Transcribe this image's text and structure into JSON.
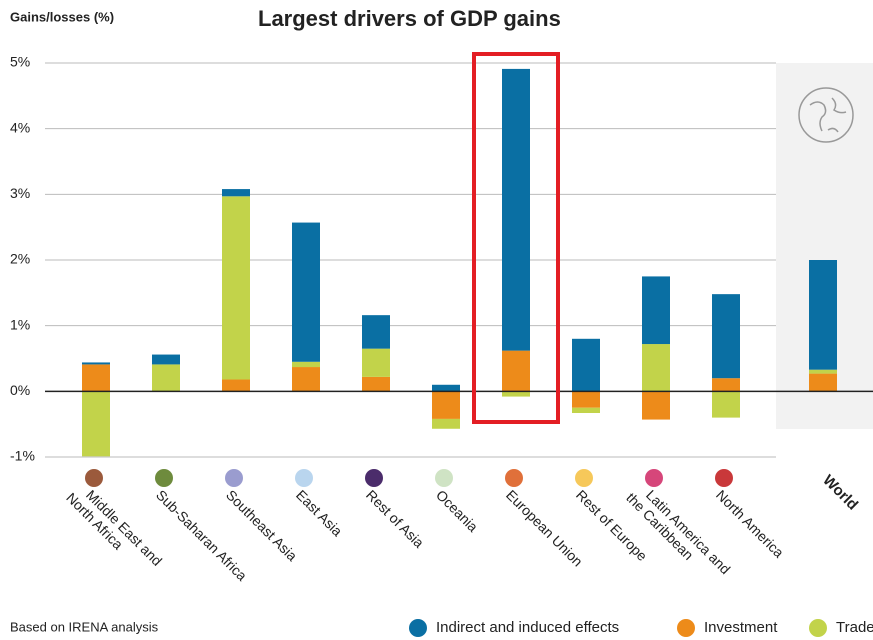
{
  "chart_data": {
    "type": "stacked-bar",
    "title": "Largest drivers of GDP gains",
    "y_axis_label": "Gains/losses (%)",
    "source": "Based on IRENA analysis",
    "categories": [
      [
        "Middle East and",
        "North Africa"
      ],
      [
        "Sub-Saharan Africa"
      ],
      [
        "Southeast Asia"
      ],
      [
        "East Asia"
      ],
      [
        "Rest of Asia"
      ],
      [
        "Oceania"
      ],
      [
        "European Union"
      ],
      [
        "Rest of Europe"
      ],
      [
        "Latin America and",
        "the Caribbean"
      ],
      [
        "North America"
      ],
      [
        "World"
      ]
    ],
    "marker_colors": [
      "#9b5a3c",
      "#6e8b3d",
      "#9a9ccf",
      "#b9d5ee",
      "#4b2c6b",
      "#cfe3c4",
      "#e0703a",
      "#f6c85a",
      "#d6467a",
      "#c9383a",
      null
    ],
    "series": [
      {
        "name": "Investment",
        "color": "#ed8b1a",
        "values": [
          0.41,
          0,
          0.18,
          0.37,
          0.22,
          -0.42,
          0.62,
          -0.25,
          -0.43,
          0.2,
          0.27
        ]
      },
      {
        "name": "Trade",
        "color": "#c2d34a",
        "values": [
          -0.99,
          0.41,
          2.79,
          0.08,
          0.43,
          -0.15,
          -0.08,
          -0.08,
          0.72,
          -0.4,
          0.06
        ]
      },
      {
        "name": "Indirect and induced effects",
        "color": "#0a6fa3",
        "values": [
          0.03,
          0.15,
          0.11,
          2.12,
          0.51,
          0.1,
          4.29,
          0.8,
          1.03,
          1.28,
          1.67
        ]
      }
    ],
    "legend_order": [
      2,
      0,
      1
    ],
    "highlight_category": 6,
    "ylim": [
      -1,
      5
    ],
    "yticks": [
      {
        "value": -1,
        "label": "-1%"
      },
      {
        "value": 0,
        "label": "0%"
      },
      {
        "value": 1,
        "label": "1%"
      },
      {
        "value": 2,
        "label": "2%"
      },
      {
        "value": 3,
        "label": "3%"
      },
      {
        "value": 4,
        "label": "4%"
      },
      {
        "value": 5,
        "label": "5%"
      }
    ],
    "grid": true
  }
}
